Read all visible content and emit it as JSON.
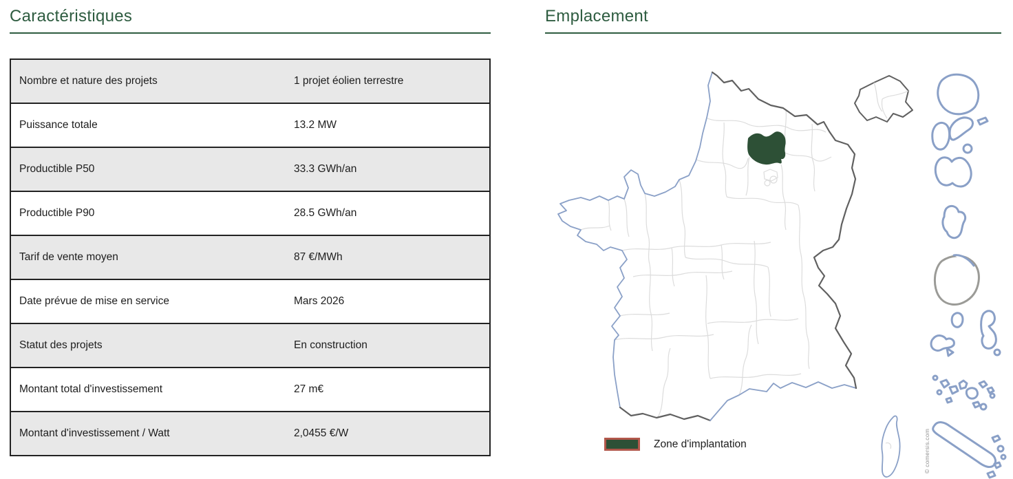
{
  "characteristics": {
    "title": "Caractéristiques",
    "rows": [
      {
        "label": "Nombre et nature des projets",
        "value": "1 projet éolien terrestre"
      },
      {
        "label": "Puissance totale",
        "value": "13.2 MW"
      },
      {
        "label": "Productible P50",
        "value": "33.3 GWh/an"
      },
      {
        "label": "Productible P90",
        "value": "28.5 GWh/an"
      },
      {
        "label": "Tarif de vente moyen",
        "value": "87 €/MWh"
      },
      {
        "label": "Date prévue de mise en service",
        "value": "Mars 2026"
      },
      {
        "label": "Statut des projets",
        "value": "En construction"
      },
      {
        "label": "Montant total d'investissement",
        "value": "27 m€"
      },
      {
        "label": "Montant d'investissement / Watt",
        "value": "2,0455 €/W"
      }
    ]
  },
  "location": {
    "title": "Emplacement",
    "legend_label": "Zone d'implantation",
    "credit": "© comersis.com"
  },
  "colors": {
    "heading_green": "#2e5c40",
    "zone_green": "#2d5036",
    "legend_border": "#b2574b",
    "row_gray": "#e8e8e8",
    "table_border": "#222222",
    "coast_blue": "#8aa0c7",
    "land_border_gray": "#606060",
    "department_line": "#dcdcdc",
    "guyane_gray": "#9b9b97"
  }
}
